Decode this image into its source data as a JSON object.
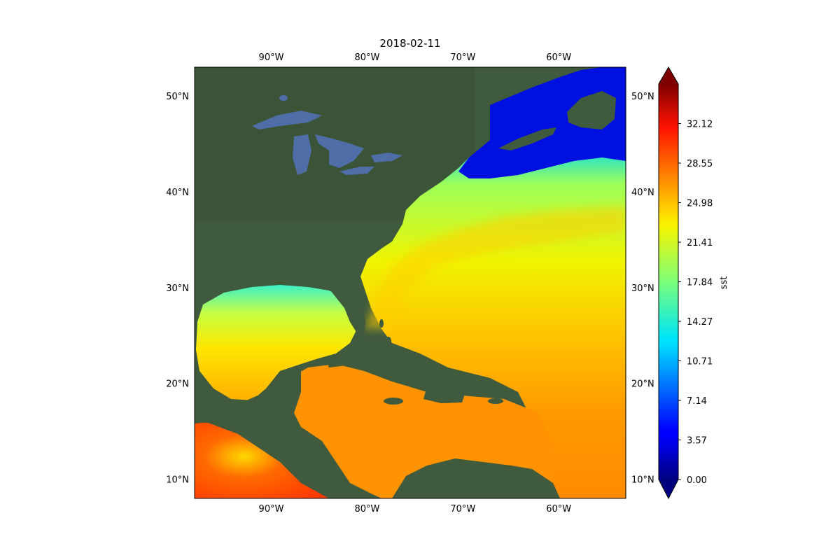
{
  "title": "2018-02-11",
  "map": {
    "lon_range": [
      -98,
      -53
    ],
    "lat_range": [
      8,
      53
    ],
    "lon_ticks": [
      {
        "value": -90,
        "label": "90°W"
      },
      {
        "value": -80,
        "label": "80°W"
      },
      {
        "value": -70,
        "label": "70°W"
      },
      {
        "value": -60,
        "label": "60°W"
      }
    ],
    "lat_ticks": [
      {
        "value": 50,
        "label": "50°N"
      },
      {
        "value": 40,
        "label": "40°N"
      },
      {
        "value": 30,
        "label": "30°N"
      },
      {
        "value": 20,
        "label": "20°N"
      },
      {
        "value": 10,
        "label": "10°N"
      }
    ],
    "colors": {
      "land": "#3f5a3c",
      "lakes": "#4f6ea8",
      "ocean_frame": "#000000"
    }
  },
  "colorbar": {
    "label": "sst",
    "colormap": "jet",
    "range": [
      0,
      35.69
    ],
    "extend": "both",
    "tick_labels": [
      "0.00",
      "3.57",
      "7.14",
      "10.71",
      "14.27",
      "17.84",
      "21.41",
      "24.98",
      "28.55",
      "32.12"
    ],
    "ticks": [
      0,
      3.57,
      7.14,
      10.71,
      14.27,
      17.84,
      21.41,
      24.98,
      28.55,
      32.12
    ]
  }
}
